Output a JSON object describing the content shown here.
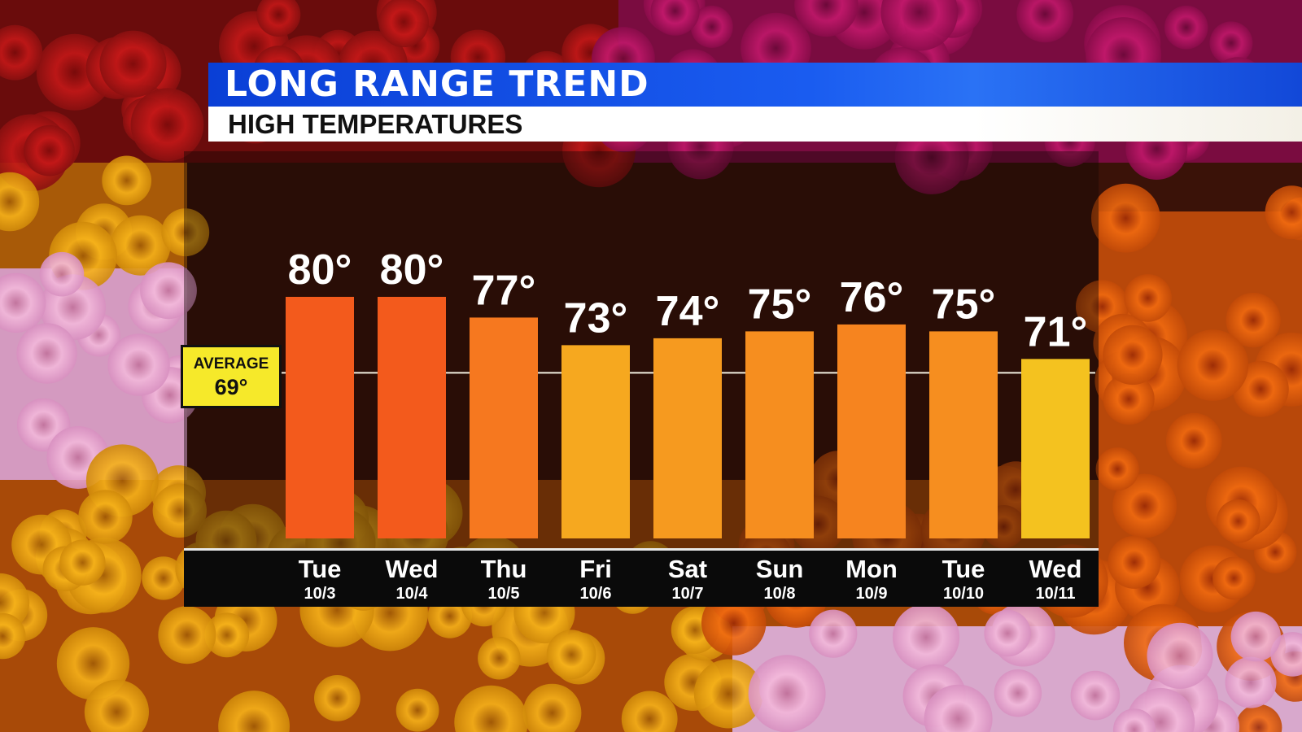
{
  "header": {
    "title": "LONG RANGE TREND",
    "subtitle": "HIGH TEMPERATURES"
  },
  "average": {
    "label": "AVERAGE",
    "value": "69°"
  },
  "colors": {
    "hot": "#f35a1c",
    "warm": "#f7891f",
    "mild": "#f4b81f",
    "header_blue": "#0a3fd6"
  },
  "chart_data": {
    "type": "bar",
    "title": "HIGH TEMPERATURES",
    "categories": [
      "Tue",
      "Wed",
      "Thu",
      "Fri",
      "Sat",
      "Sun",
      "Mon",
      "Tue",
      "Wed"
    ],
    "dates": [
      "10/3",
      "10/4",
      "10/5",
      "10/6",
      "10/7",
      "10/8",
      "10/9",
      "10/10",
      "10/11"
    ],
    "values": [
      80,
      80,
      77,
      73,
      74,
      75,
      76,
      75,
      71
    ],
    "value_labels": [
      "80°",
      "80°",
      "77°",
      "73°",
      "74°",
      "75°",
      "76°",
      "75°",
      "71°"
    ],
    "bar_colors": [
      "#f35a1c",
      "#f35a1c",
      "#f6781f",
      "#f6a81f",
      "#f69a1f",
      "#f68e1f",
      "#f6841f",
      "#f68e1f",
      "#f4c21f"
    ],
    "average_line": 69,
    "ylim": [
      45,
      82
    ]
  }
}
